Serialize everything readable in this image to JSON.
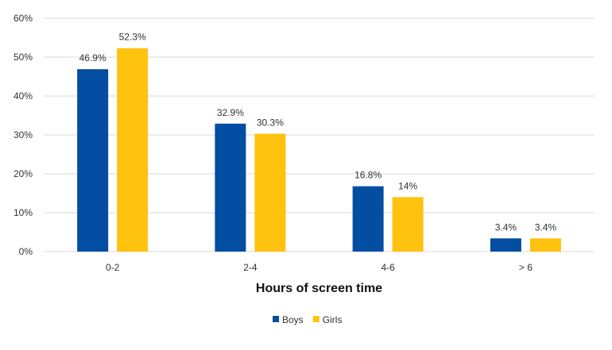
{
  "chart_data": {
    "type": "bar",
    "categories": [
      "0-2",
      "2-4",
      "4-6",
      "> 6"
    ],
    "series": [
      {
        "name": "Boys",
        "values": [
          46.9,
          32.9,
          16.8,
          3.4
        ],
        "labels": [
          "46.9%",
          "32.9%",
          "16.8%",
          "3.4%"
        ],
        "color": "#034EA2"
      },
      {
        "name": "Girls",
        "values": [
          52.3,
          30.3,
          14,
          3.4
        ],
        "labels": [
          "52.3%",
          "30.3%",
          "14%",
          "3.4%"
        ],
        "color": "#FFC20E"
      }
    ],
    "title": "",
    "xlabel": "Hours of screen time",
    "ylabel": "",
    "ylim": [
      0,
      60
    ],
    "yticks": [
      0,
      10,
      20,
      30,
      40,
      50,
      60
    ],
    "ytick_labels": [
      "0%",
      "10%",
      "20%",
      "30%",
      "40%",
      "50%",
      "60%"
    ],
    "grid": true,
    "gridline_color": "#D9D9D9",
    "legend_position": "bottom"
  }
}
